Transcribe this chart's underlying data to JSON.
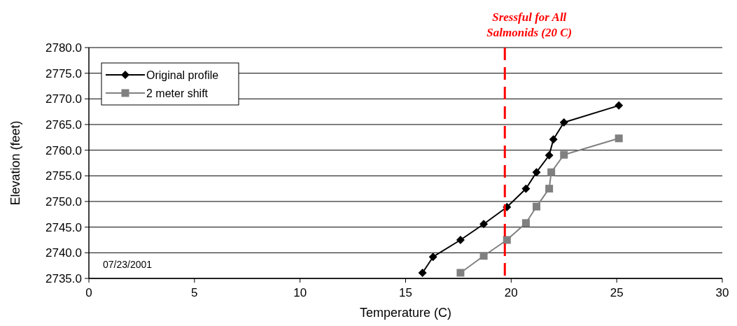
{
  "chart_data": {
    "type": "line",
    "xlabel": "Temperature (C)",
    "ylabel": "Elevation (feet)",
    "xlim": [
      0,
      30
    ],
    "xticks": [
      0,
      5,
      10,
      15,
      20,
      25,
      30
    ],
    "ylim": [
      2735,
      2780
    ],
    "yticks": [
      {
        "value": 2735,
        "label": "2735.0"
      },
      {
        "value": 2740,
        "label": "2740.0"
      },
      {
        "value": 2745,
        "label": "2745.0"
      },
      {
        "value": 2750,
        "label": "2750.0"
      },
      {
        "value": 2755,
        "label": "2755.0"
      },
      {
        "value": 2760,
        "label": "2760.0"
      },
      {
        "value": 2765,
        "label": "2765.0"
      },
      {
        "value": 2770,
        "label": "2770.0"
      },
      {
        "value": 2775,
        "label": "2775.0"
      },
      {
        "value": 2780,
        "label": "2780.0"
      }
    ],
    "grid": "y",
    "legend": "top left",
    "series": [
      {
        "name": "Original profile",
        "color": "#000000",
        "marker": "diamond",
        "x": [
          15.8,
          16.3,
          17.6,
          18.7,
          19.8,
          20.7,
          21.2,
          21.8,
          22.0,
          22.5,
          25.1
        ],
        "values": [
          2736.1,
          2739.2,
          2742.5,
          2745.6,
          2748.9,
          2752.5,
          2755.7,
          2759.0,
          2762.1,
          2765.4,
          2768.7
        ]
      },
      {
        "name": "2 meter shift",
        "color": "#808080",
        "marker": "square",
        "x": [
          17.6,
          18.7,
          19.8,
          20.7,
          21.2,
          21.8,
          21.9,
          22.5,
          25.1
        ],
        "values": [
          2736.1,
          2739.4,
          2742.5,
          2745.8,
          2749.0,
          2752.5,
          2755.7,
          2759.1,
          2762.3
        ]
      }
    ],
    "ref_lines": [
      {
        "axis": "x",
        "value": 19.7,
        "label": "Sressful for All\nSalmonids (20 C)",
        "color": "#ff0000",
        "line_style": "dashed"
      }
    ],
    "annotations": [
      "07/23/2001"
    ]
  }
}
